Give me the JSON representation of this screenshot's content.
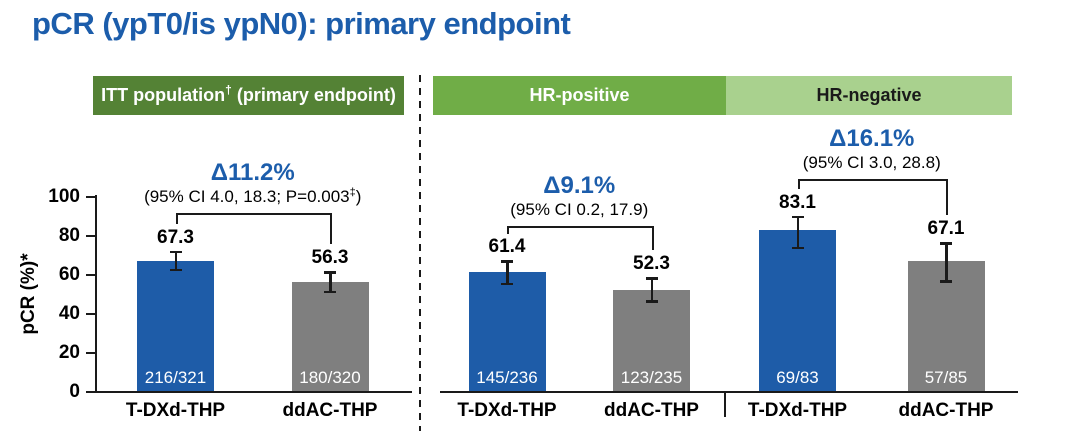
{
  "title": "pCR (ypT0/is ypN0): primary endpoint",
  "colors": {
    "title_blue": "#1C5DAB",
    "delta_blue": "#1C5DAB",
    "tdxd_bar": "#1E5CA8",
    "ddac_bar": "#7F7F7F",
    "itt_header_bg": "#548235",
    "hr_positive_header_bg": "#70AD47",
    "hr_negative_header_bg": "#A9D18E",
    "axis": "#1A1A1A"
  },
  "chart_data": {
    "type": "bar",
    "title": "pCR (ypT0/is ypN0): primary endpoint",
    "ylabel": "pCR (%)*",
    "xlabel": "",
    "ylim": [
      0,
      100
    ],
    "yticks": [
      0,
      20,
      40,
      60,
      80,
      100
    ],
    "grid": false,
    "legend": "none",
    "series_names": [
      "T-DXd-THP",
      "ddAC-THP"
    ],
    "panels": [
      {
        "header": "ITT population† (primary endpoint)",
        "delta_label": "Δ11.2%",
        "ci_label": "(95% CI 4.0, 18.3; P=0.003‡)",
        "bars": [
          {
            "label": "T-DXd-THP",
            "value": 67.3,
            "fraction": "216/321",
            "err_high": 5.1,
            "err_low": 5.4
          },
          {
            "label": "ddAC-THP",
            "value": 56.3,
            "fraction": "180/320",
            "err_high": 5.5,
            "err_low": 5.7
          }
        ]
      },
      {
        "header": "HR-positive",
        "delta_label": "Δ9.1%",
        "ci_label": "(95% CI 0.2, 17.9)",
        "bars": [
          {
            "label": "T-DXd-THP",
            "value": 61.4,
            "fraction": "145/236",
            "err_high": 6.2,
            "err_low": 6.6
          },
          {
            "label": "ddAC-THP",
            "value": 52.3,
            "fraction": "123/235",
            "err_high": 6.6,
            "err_low": 6.5
          }
        ]
      },
      {
        "header": "HR-negative",
        "delta_label": "Δ16.1%",
        "ci_label": "(95% CI 3.0, 28.8)",
        "bars": [
          {
            "label": "T-DXd-THP",
            "value": 83.1,
            "fraction": "69/83",
            "err_high": 7.4,
            "err_low": 9.8
          },
          {
            "label": "ddAC-THP",
            "value": 67.1,
            "fraction": "57/85",
            "err_high": 9.8,
            "err_low": 11.1
          }
        ]
      }
    ]
  }
}
